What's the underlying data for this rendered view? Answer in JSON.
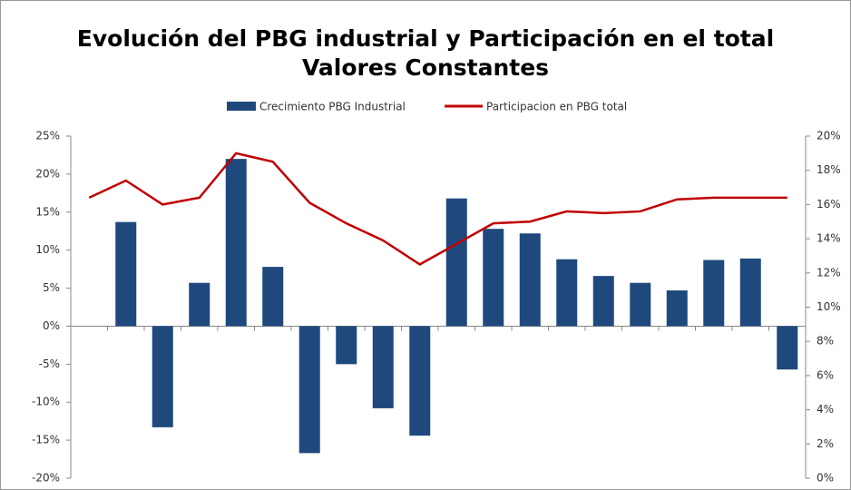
{
  "chart_data": {
    "type": "bar_line",
    "title": "Evolución del PBG industrial y Participación en el total",
    "subtitle": "Valores Constantes",
    "categories": [
      null,
      null,
      null,
      null,
      null,
      null,
      null,
      null,
      null,
      null,
      null,
      null,
      null,
      null,
      null,
      null,
      null,
      null,
      null,
      null
    ],
    "series": [
      {
        "name": "Crecimiento PBG Industrial",
        "color": "#1f497d",
        "type": "bar",
        "values": [
          null,
          13.7,
          -13.3,
          5.7,
          22,
          7.8,
          -16.7,
          -5,
          -10.8,
          -14.4,
          16.8,
          12.8,
          12.2,
          8.8,
          6.6,
          5.7,
          4.7,
          8.7,
          8.9,
          -5.7
        ]
      },
      {
        "name": "Participacion en PBG total",
        "color": "#c00000",
        "type": "line",
        "axis": "y2",
        "values": [
          16.4,
          17.4,
          16.0,
          16.4,
          19.0,
          18.5,
          16.1,
          14.9,
          13.9,
          12.5,
          13.7,
          14.9,
          15.0,
          15.6,
          15.5,
          15.6,
          16.3,
          16.4,
          16.4,
          16.4
        ]
      }
    ],
    "ylim": [
      -20,
      25
    ],
    "yticks": [
      {
        "value": -20,
        "label": "-20%"
      },
      {
        "value": -15,
        "label": "-15%"
      },
      {
        "value": -10,
        "label": "-10%"
      },
      {
        "value": -5,
        "label": "-5%"
      },
      {
        "value": 0,
        "label": "0%"
      },
      {
        "value": 5,
        "label": "5%"
      },
      {
        "value": 10,
        "label": "10%"
      },
      {
        "value": 15,
        "label": "15%"
      },
      {
        "value": 20,
        "label": "20%"
      },
      {
        "value": 25,
        "label": "25%"
      }
    ],
    "y2lim": [
      0,
      20
    ],
    "y2ticks": [
      {
        "value": 0,
        "label": "0%"
      },
      {
        "value": 2,
        "label": "2%"
      },
      {
        "value": 4,
        "label": "4%"
      },
      {
        "value": 6,
        "label": "6%"
      },
      {
        "value": 8,
        "label": "8%"
      },
      {
        "value": 10,
        "label": "10%"
      },
      {
        "value": 12,
        "label": "12%"
      },
      {
        "value": 14,
        "label": "14%"
      },
      {
        "value": 16,
        "label": "16%"
      },
      {
        "value": 18,
        "label": "18%"
      },
      {
        "value": 20,
        "label": "20%"
      }
    ],
    "legend": "top"
  }
}
